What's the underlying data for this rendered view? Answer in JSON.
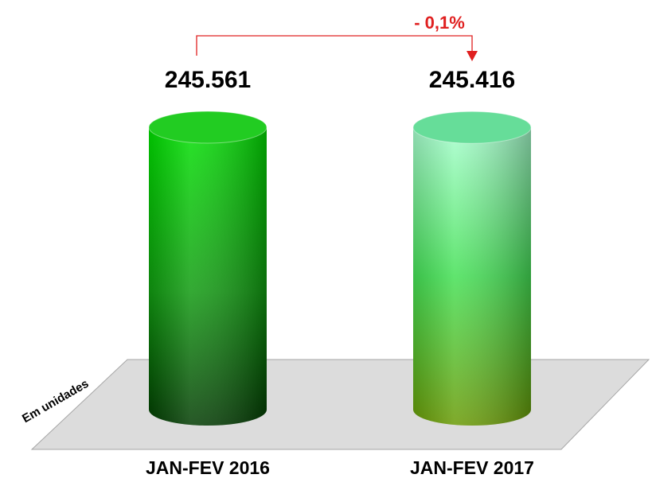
{
  "chart_data": {
    "type": "bar",
    "annotation": "- 0,1%",
    "axis_label": "Em unidades",
    "categories": [
      "JAN-FEV 2016",
      "JAN-FEV 2017"
    ],
    "values": [
      245561,
      245416
    ],
    "value_labels": [
      "245.561",
      "245.416"
    ],
    "colors": [
      "#22cc22",
      "#66dd99"
    ]
  }
}
